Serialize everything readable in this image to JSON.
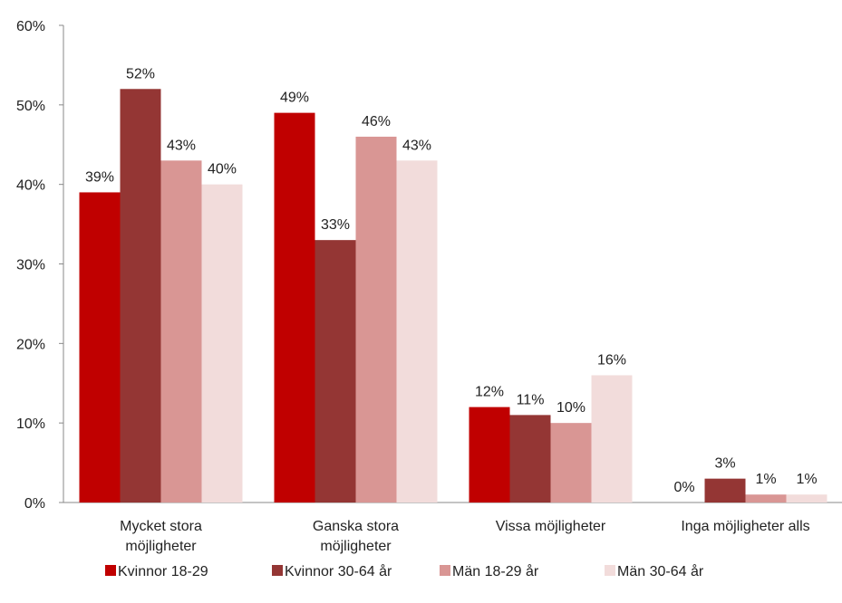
{
  "chart_data": {
    "type": "bar",
    "categories": [
      "Mycket stora\nmöjligheter",
      "Ganska stora\nmöjligheter",
      "Vissa möjligheter",
      "Inga möjligheter alls"
    ],
    "series": [
      {
        "name": "Kvinnor 18-29",
        "color": "#c00000",
        "values": [
          39,
          49,
          12,
          0
        ],
        "value_labels": [
          "39%",
          "49%",
          "12%",
          "0%"
        ]
      },
      {
        "name": "Kvinnor 30-64 år",
        "color": "#943634",
        "values": [
          52,
          33,
          11,
          3
        ],
        "value_labels": [
          "52%",
          "33%",
          "11%",
          "3%"
        ]
      },
      {
        "name": "Män 18-29 år",
        "color": "#d99694",
        "values": [
          43,
          46,
          10,
          1
        ],
        "value_labels": [
          "43%",
          "46%",
          "10%",
          "1%"
        ]
      },
      {
        "name": "Män 30-64 år",
        "color": "#f2dcdb",
        "values": [
          40,
          43,
          16,
          1
        ],
        "value_labels": [
          "40%",
          "43%",
          "16%",
          "1%"
        ]
      }
    ],
    "ylim": [
      0,
      60
    ],
    "yticks": [
      {
        "value": 0,
        "label": "0%"
      },
      {
        "value": 10,
        "label": "10%"
      },
      {
        "value": 20,
        "label": "20%"
      },
      {
        "value": 30,
        "label": "30%"
      },
      {
        "value": 40,
        "label": "40%"
      },
      {
        "value": 50,
        "label": "50%"
      },
      {
        "value": 60,
        "label": "60%"
      }
    ],
    "grid": false,
    "legend": "bottom"
  }
}
